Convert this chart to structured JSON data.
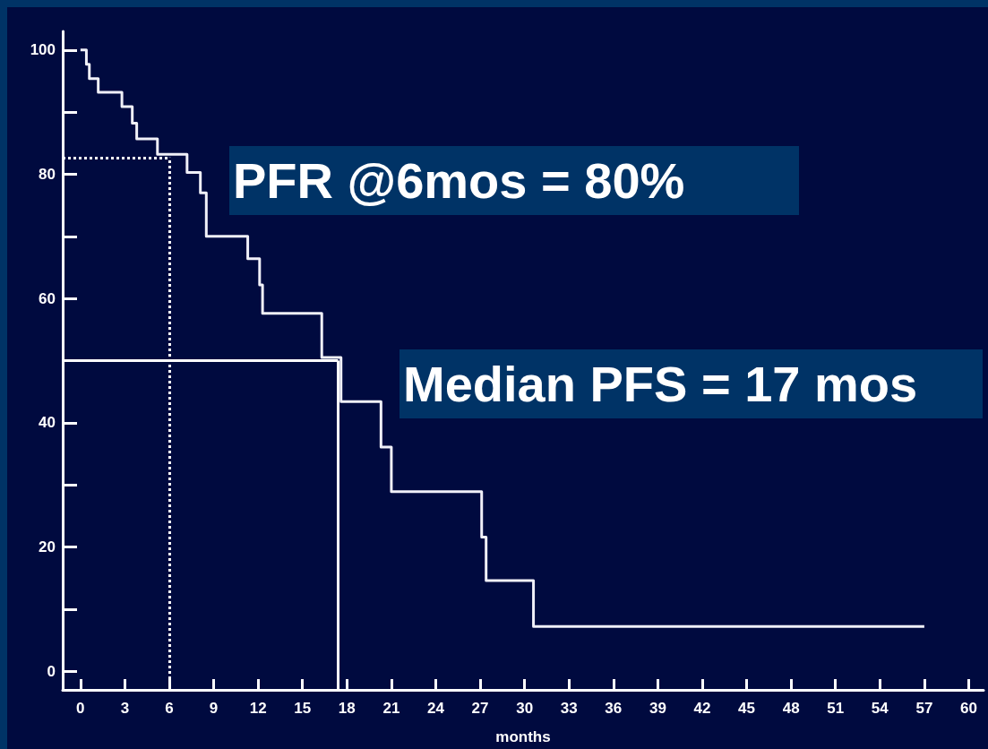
{
  "chart_data": {
    "type": "step",
    "xlabel": "months",
    "annotations": [
      "PFR @6mos = 80%",
      "Median PFS = 17 mos"
    ],
    "series": [
      {
        "color": "#f0f0f8",
        "x": [
          0,
          0.4,
          0.6,
          1.2,
          2.8,
          3.5,
          3.8,
          5.2,
          7.2,
          8.1,
          8.5,
          11.3,
          12.1,
          12.3,
          16.3,
          17.6,
          20.3,
          21.0,
          27.1,
          27.4,
          30.6,
          57
        ],
        "values": [
          100,
          97.7,
          95.4,
          93.2,
          90.9,
          88.2,
          85.7,
          83.2,
          80.3,
          77.0,
          70.0,
          66.4,
          62.2,
          57.6,
          50.5,
          43.4,
          36.1,
          28.9,
          21.6,
          14.6,
          7.2,
          7.2
        ]
      }
    ],
    "xlim": [
      -1.2,
      61
    ],
    "xticks": [
      0,
      3,
      6,
      9,
      12,
      15,
      18,
      21,
      24,
      27,
      30,
      33,
      36,
      39,
      42,
      45,
      48,
      51,
      54,
      57,
      60
    ],
    "ylim": [
      -3,
      103
    ],
    "yticks": [
      0,
      {
        "value": 10,
        "label": null
      },
      20,
      {
        "value": 30,
        "label": null
      },
      40,
      {
        "value": 50,
        "label": null
      },
      60,
      {
        "value": 70,
        "label": null
      },
      80,
      {
        "value": 90,
        "label": null
      },
      100
    ],
    "ref_lines": [
      {
        "axis": "x",
        "value": 6,
        "color": "#ffffff",
        "line_style": "dotted"
      },
      {
        "axis": "y",
        "value": 82.7,
        "color": "#ffffff",
        "line_style": "dotted"
      },
      {
        "axis": "x",
        "value": 17.4,
        "color": "#ffffff",
        "line_style": "solid"
      },
      {
        "axis": "y",
        "value": 50,
        "color": "#ffffff",
        "line_style": "solid"
      }
    ],
    "grid": false,
    "marker": "none",
    "line_style": "solid"
  }
}
